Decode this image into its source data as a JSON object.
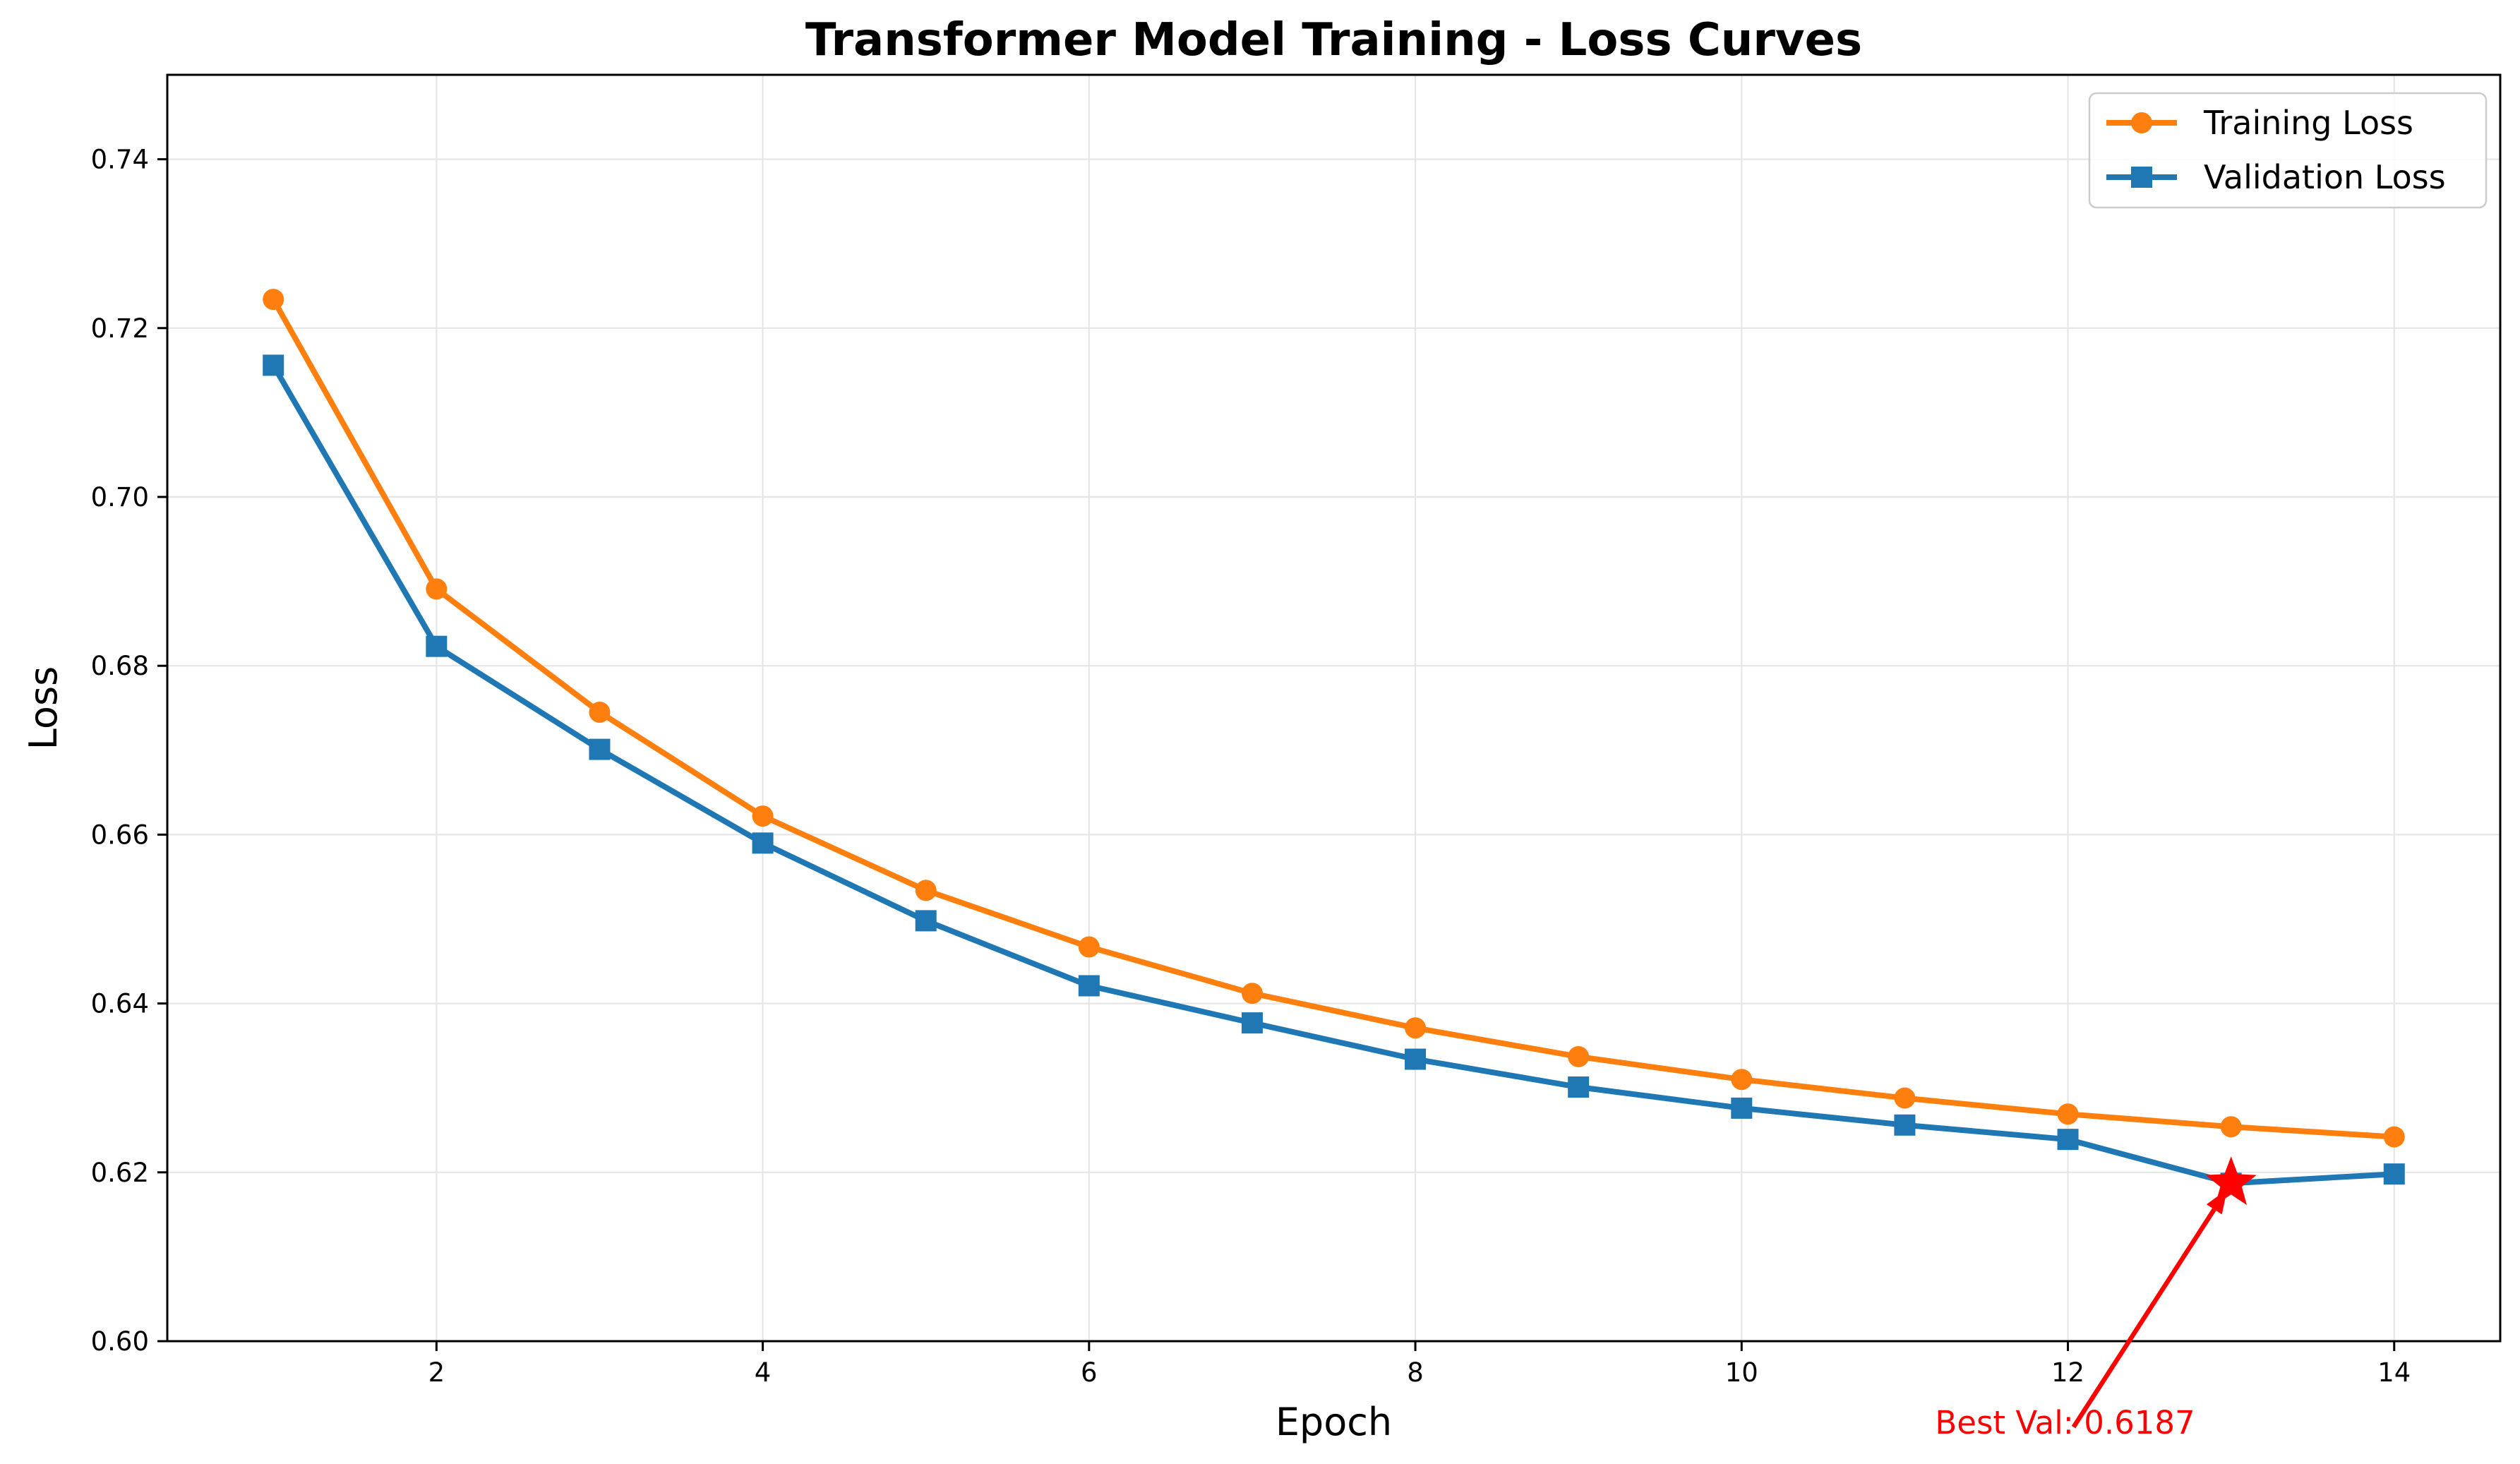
{
  "chart_data": {
    "type": "line",
    "title": "Transformer Model Training - Loss Curves",
    "xlabel": "Epoch",
    "ylabel": "Loss",
    "xlim": [
      0.35,
      14.65
    ],
    "ylim": [
      0.6,
      0.75
    ],
    "xticks": [
      2,
      4,
      6,
      8,
      10,
      12,
      14
    ],
    "xtick_labels": [
      "2",
      "4",
      "6",
      "8",
      "10",
      "12",
      "14"
    ],
    "yticks": [
      0.6,
      0.62,
      0.64,
      0.66,
      0.68,
      0.7,
      0.72,
      0.74
    ],
    "ytick_labels": [
      "0.60",
      "0.62",
      "0.64",
      "0.66",
      "0.68",
      "0.70",
      "0.72",
      "0.74"
    ],
    "grid": true,
    "legend_position": "top-right",
    "x": [
      1,
      2,
      3,
      4,
      5,
      6,
      7,
      8,
      9,
      10,
      11,
      12,
      13,
      14
    ],
    "series": [
      {
        "name": "Training Loss",
        "color": "#ff7f0e",
        "marker": "circle",
        "values": [
          0.7234,
          0.6891,
          0.6745,
          0.6622,
          0.6534,
          0.6467,
          0.6412,
          0.6371,
          0.6337,
          0.631,
          0.6288,
          0.6269,
          0.6254,
          0.6242
        ]
      },
      {
        "name": "Validation Loss",
        "color": "#1f77b4",
        "marker": "square",
        "values": [
          0.7156,
          0.6823,
          0.6701,
          0.659,
          0.6498,
          0.6421,
          0.6377,
          0.6334,
          0.6301,
          0.6276,
          0.6256,
          0.6239,
          0.6187,
          0.6198
        ]
      }
    ],
    "annotations": [
      {
        "text": "Best Val: 0.6187",
        "color": "#ff0000",
        "point": [
          13,
          0.6187
        ],
        "marker": "star",
        "text_anchor": [
          12.0,
          0.5905
        ]
      }
    ]
  }
}
